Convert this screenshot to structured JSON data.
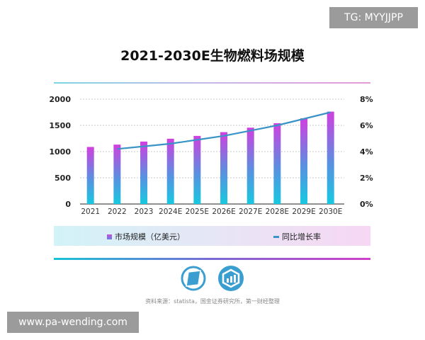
{
  "watermarks": {
    "top_right": "TG: MYYJJPP",
    "bottom_left": "www.pa-wending.com"
  },
  "source": "资料来源：statista，国金证券研究所，第一财经整理",
  "icons": [
    "compass-logo-icon",
    "bar-chart-shield-logo-icon"
  ],
  "chart_data": {
    "type": "bar+line",
    "title": "2021-2030E生物燃料场规模",
    "categories": [
      "2021",
      "2022",
      "2023",
      "2024E",
      "2025E",
      "2026E",
      "2027E",
      "2028E",
      "2029E",
      "2030E"
    ],
    "series": [
      {
        "name": "市场规模（亿美元）",
        "type": "bar",
        "axis": "left",
        "values": [
          1088,
          1133,
          1191,
          1245,
          1299,
          1371,
          1456,
          1542,
          1636,
          1762
        ]
      },
      {
        "name": "同比增长率",
        "type": "line",
        "axis": "right",
        "values": [
          null,
          4.2,
          4.4,
          4.6,
          4.9,
          5.2,
          5.6,
          6.0,
          6.5,
          7.0
        ]
      }
    ],
    "y_left": {
      "ylim": [
        0,
        2000
      ],
      "ticks": [
        "0",
        "500",
        "1000",
        "1500",
        "2000"
      ]
    },
    "y_right": {
      "ylim": [
        0,
        8
      ],
      "ticks": [
        "0%",
        "2%",
        "4%",
        "6%",
        "8%"
      ]
    },
    "grid": true,
    "legend": "bottom",
    "colors": {
      "bar_top": "#d13fe0",
      "bar_bottom": "#17c9e0",
      "line": "#3a93c6"
    }
  }
}
